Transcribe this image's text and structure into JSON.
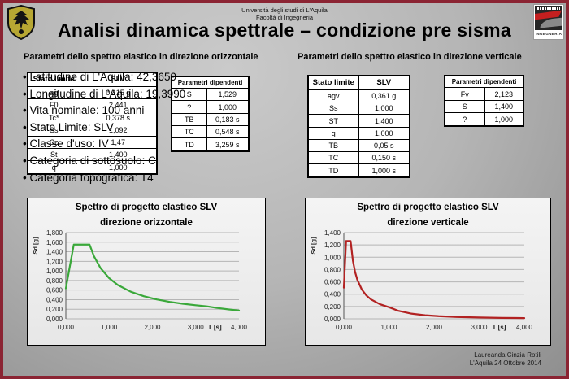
{
  "header": {
    "university_line1": "Università degli studi di L'Aquila",
    "university_line2": "Facoltà di Ingegneria",
    "title": "Analisi dinamica spettrale – condizione pre sisma",
    "right_logo_label": "INGEGNERIA"
  },
  "sections": {
    "left_heading": "Parametri dello spettro elastico in direzione orizzontale",
    "right_heading": "Parametri dello spettro elastico in direzione verticale"
  },
  "bullets": [
    "Latitudine di L'Aquila: 42,3659",
    "Longitudine di L'Aquila: 19,3990",
    "Vita nominale: 100 anni",
    "Stato Limite: SLV",
    "Classe d'uso: IV",
    "Categoria di sottosuolo: C",
    "Categoria topografica: T4"
  ],
  "tables": {
    "horizontal_state": {
      "header": [
        "Stato limite",
        "SLV"
      ],
      "rows": [
        [
          "ag",
          "0,415 g"
        ],
        [
          "F0",
          "2,441"
        ],
        [
          "Tc*",
          "0,378 s"
        ],
        [
          "Ss",
          "1,092"
        ],
        [
          "Cc",
          "1,47"
        ],
        [
          "St",
          "1,400"
        ],
        [
          "q",
          "1,000"
        ]
      ]
    },
    "horizontal_dependent": {
      "header": "Parametri dipendenti",
      "rows": [
        [
          "S",
          "1,529"
        ],
        [
          "?",
          "1,000"
        ],
        [
          "TB",
          "0,183 s"
        ],
        [
          "TC",
          "0,548 s"
        ],
        [
          "TD",
          "3,259 s"
        ]
      ]
    },
    "vertical_state": {
      "header": [
        "Stato limite",
        "SLV"
      ],
      "rows": [
        [
          "agv",
          "0,361 g"
        ],
        [
          "Ss",
          "1,000"
        ],
        [
          "ST",
          "1,400"
        ],
        [
          "q",
          "1,000"
        ],
        [
          "TB",
          "0,05 s"
        ],
        [
          "TC",
          "0,150 s"
        ],
        [
          "TD",
          "1,000 s"
        ]
      ]
    },
    "vertical_dependent": {
      "header": "Parametri dipendenti",
      "rows": [
        [
          "Fv",
          "2,123"
        ],
        [
          "S",
          "1,400"
        ],
        [
          "?",
          "1,000"
        ]
      ]
    }
  },
  "chart_data": [
    {
      "type": "line",
      "title": "Spettro di progetto elastico SLV",
      "subtitle": "direzione orizzontale",
      "xlabel": "T [s]",
      "ylabel": "Sd [g]",
      "xlim": [
        0,
        4
      ],
      "ylim": [
        0,
        1.8
      ],
      "xticks": [
        0,
        1,
        2,
        3,
        4
      ],
      "yticks": [
        0,
        0.2,
        0.4,
        0.6,
        0.8,
        1.0,
        1.2,
        1.4,
        1.6,
        1.8
      ],
      "grid": "horizontal",
      "legend": "none",
      "series": [
        {
          "name": "Sd orizzontale",
          "color": "#3aa83a",
          "points": [
            [
              0,
              0.635
            ],
            [
              0.183,
              1.549
            ],
            [
              0.548,
              1.549
            ],
            [
              0.65,
              1.306
            ],
            [
              0.8,
              1.061
            ],
            [
              1.0,
              0.849
            ],
            [
              1.2,
              0.707
            ],
            [
              1.5,
              0.566
            ],
            [
              1.8,
              0.472
            ],
            [
              2.1,
              0.404
            ],
            [
              2.4,
              0.354
            ],
            [
              2.7,
              0.314
            ],
            [
              3.0,
              0.283
            ],
            [
              3.259,
              0.26
            ],
            [
              3.5,
              0.226
            ],
            [
              3.75,
              0.197
            ],
            [
              4.0,
              0.173
            ]
          ]
        }
      ]
    },
    {
      "type": "line",
      "title": "Spettro di progetto elastico SLV",
      "subtitle": "direzione verticale",
      "xlabel": "T [s]",
      "ylabel": "Sd [g]",
      "xlim": [
        0,
        4
      ],
      "ylim": [
        0,
        1.4
      ],
      "xticks": [
        0,
        1,
        2,
        3,
        4
      ],
      "yticks": [
        0,
        0.2,
        0.4,
        0.6,
        0.8,
        1.0,
        1.2,
        1.4
      ],
      "grid": "horizontal",
      "legend": "none",
      "series": [
        {
          "name": "Sd verticale",
          "color": "#b22222",
          "points": [
            [
              0,
              0.505
            ],
            [
              0.05,
              1.263
            ],
            [
              0.15,
              1.263
            ],
            [
              0.2,
              0.947
            ],
            [
              0.25,
              0.758
            ],
            [
              0.3,
              0.632
            ],
            [
              0.4,
              0.474
            ],
            [
              0.5,
              0.379
            ],
            [
              0.6,
              0.316
            ],
            [
              0.8,
              0.237
            ],
            [
              1.0,
              0.189
            ],
            [
              1.2,
              0.131
            ],
            [
              1.5,
              0.084
            ],
            [
              1.8,
              0.058
            ],
            [
              2.1,
              0.043
            ],
            [
              2.5,
              0.03
            ],
            [
              3.0,
              0.021
            ],
            [
              3.5,
              0.015
            ],
            [
              4.0,
              0.012
            ]
          ]
        }
      ]
    }
  ],
  "footer": {
    "line1": "Laureanda Cinzia Rotili",
    "line2": "L'Aquila 24 Ottobre 2014"
  },
  "colors": {
    "slide_border": "#8b2433",
    "horizontal_series": "#3aa83a",
    "vertical_series": "#b22222"
  }
}
